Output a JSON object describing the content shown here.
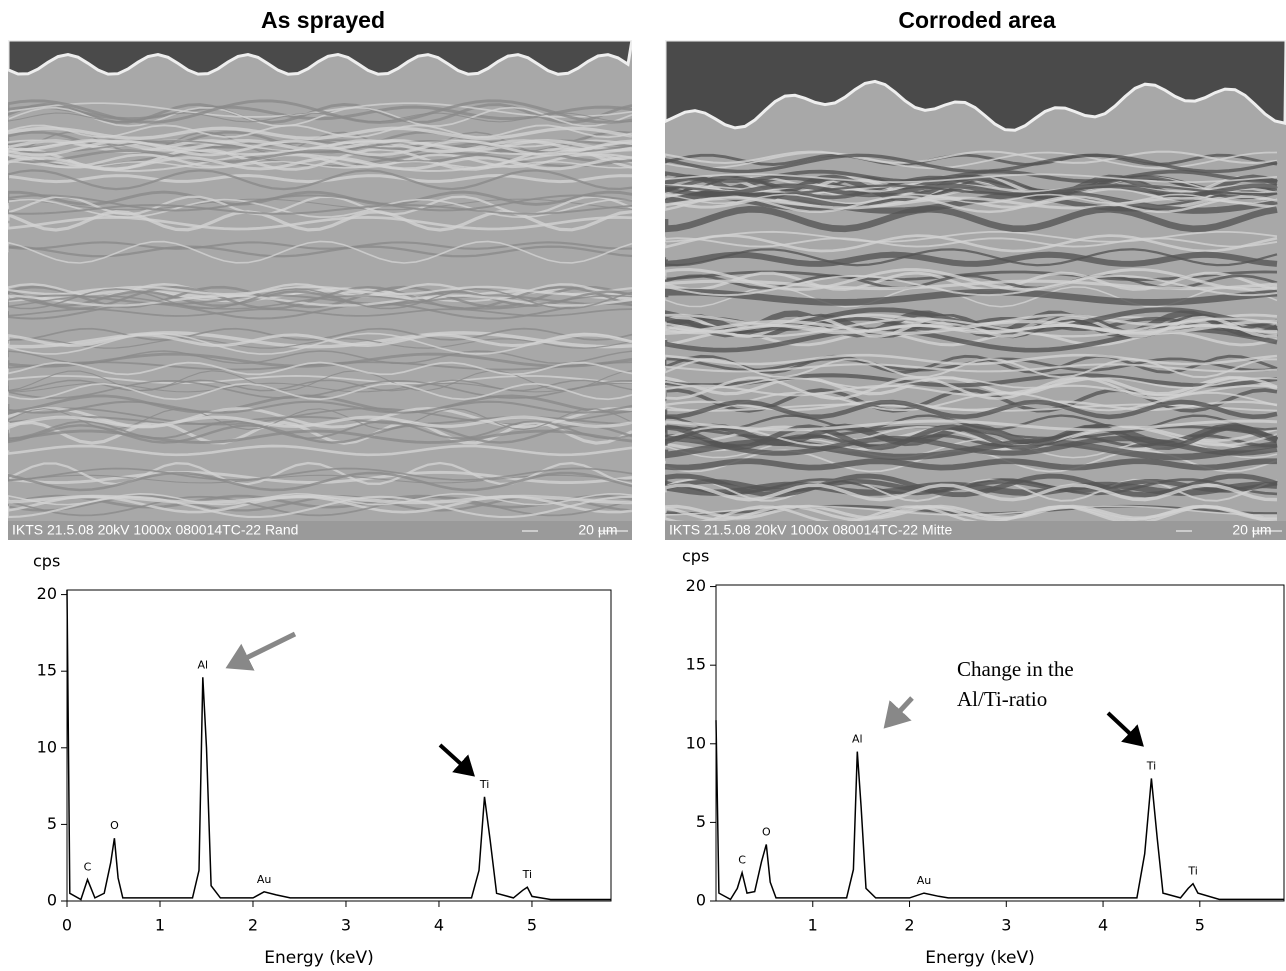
{
  "chart_data": [
    {
      "type": "line",
      "title": "As sprayed",
      "image_caption": "IKTS 21.5.08 20kV 1000x 080014TC-22 Rand",
      "scale_bar": "20 µm",
      "y_label": "cps",
      "x_label": "Energy (keV)",
      "xlim": [
        0,
        5.85
      ],
      "ylim": [
        0,
        20.3
      ],
      "xticks": [
        0,
        1,
        2,
        3,
        4,
        5
      ],
      "yticks": [
        0,
        5,
        10,
        15,
        20
      ],
      "series": [
        {
          "color": "#000000",
          "x": [
            0.0,
            0.03,
            0.15,
            0.22,
            0.26,
            0.3,
            0.4,
            0.47,
            0.51,
            0.55,
            0.6,
            1.0,
            1.35,
            1.42,
            1.46,
            1.5,
            1.55,
            1.65,
            2.0,
            2.12,
            2.25,
            2.4,
            3.0,
            4.0,
            4.35,
            4.43,
            4.49,
            4.55,
            4.62,
            4.8,
            4.9,
            4.95,
            5.0,
            5.2,
            5.85
          ],
          "values": [
            20.3,
            0.5,
            0.1,
            1.4,
            0.8,
            0.2,
            0.5,
            2.5,
            4.1,
            1.5,
            0.2,
            0.2,
            0.2,
            2,
            14.6,
            10,
            1,
            0.2,
            0.2,
            0.6,
            0.4,
            0.2,
            0.2,
            0.2,
            0.2,
            2,
            6.8,
            4,
            0.5,
            0.2,
            0.7,
            0.9,
            0.3,
            0.1,
            0.1
          ]
        }
      ],
      "peak_labels": [
        {
          "text": "C",
          "x": 0.22,
          "y": 1.4
        },
        {
          "text": "O",
          "x": 0.51,
          "y": 4.1
        },
        {
          "text": "Al",
          "x": 1.46,
          "y": 14.6
        },
        {
          "text": "Au",
          "x": 2.12,
          "y": 0.6
        },
        {
          "text": "Ti",
          "x": 4.49,
          "y": 6.8
        },
        {
          "text": "Ti",
          "x": 4.95,
          "y": 0.9
        }
      ]
    },
    {
      "type": "line",
      "title": "Corroded area",
      "image_caption": "IKTS 21.5.08 20kV 1000x 080014TC-22 Mitte",
      "scale_bar": "20 µm",
      "y_label": "cps",
      "x_label": "Energy (keV)",
      "xlim": [
        0,
        5.87
      ],
      "ylim": [
        0,
        20.1
      ],
      "xticks": [
        1,
        2,
        3,
        4,
        5
      ],
      "yticks": [
        0,
        5,
        10,
        15,
        20
      ],
      "series": [
        {
          "color": "#000000",
          "x": [
            0.0,
            0.03,
            0.15,
            0.22,
            0.27,
            0.32,
            0.4,
            0.47,
            0.52,
            0.56,
            0.62,
            1.0,
            1.35,
            1.42,
            1.46,
            1.5,
            1.55,
            1.65,
            2.0,
            2.15,
            2.3,
            2.4,
            4.0,
            4.35,
            4.43,
            4.5,
            4.56,
            4.62,
            4.8,
            4.88,
            4.93,
            4.98,
            5.2,
            5.87
          ],
          "values": [
            11.5,
            0.5,
            0.1,
            0.8,
            1.8,
            0.5,
            0.6,
            2.5,
            3.6,
            1.2,
            0.2,
            0.2,
            0.2,
            2,
            9.5,
            6,
            0.8,
            0.2,
            0.2,
            0.5,
            0.3,
            0.2,
            0.2,
            0.2,
            3,
            7.8,
            4,
            0.5,
            0.2,
            0.8,
            1.1,
            0.5,
            0.1,
            0.1
          ]
        }
      ],
      "peak_labels": [
        {
          "text": "C",
          "x": 0.27,
          "y": 1.8
        },
        {
          "text": "O",
          "x": 0.52,
          "y": 3.6
        },
        {
          "text": "Al",
          "x": 1.46,
          "y": 9.5
        },
        {
          "text": "Au",
          "x": 2.15,
          "y": 0.5
        },
        {
          "text": "Ti",
          "x": 4.5,
          "y": 7.8
        },
        {
          "text": "Ti",
          "x": 4.93,
          "y": 1.1
        }
      ],
      "annotation": [
        "Change in the",
        "Al/Ti-ratio"
      ]
    }
  ]
}
